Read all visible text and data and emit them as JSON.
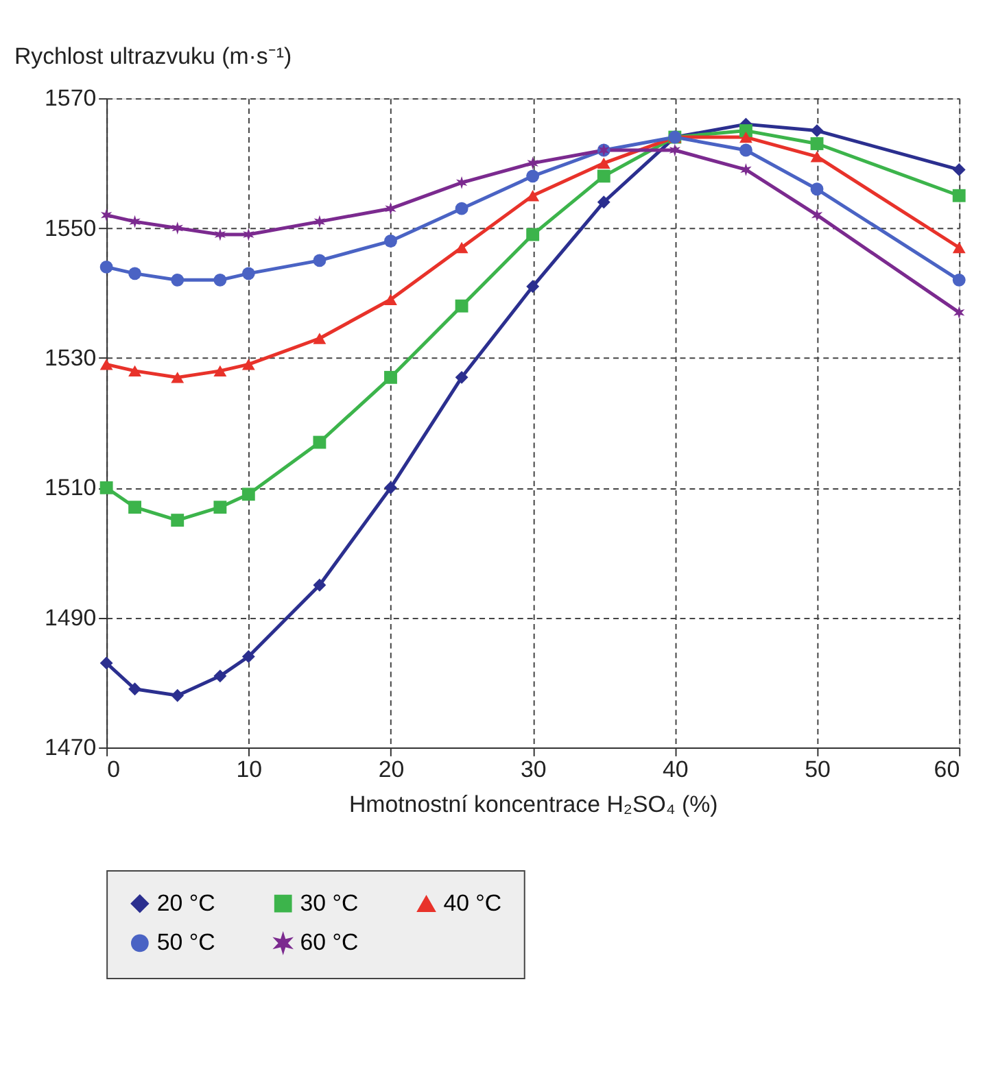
{
  "chart_data": {
    "type": "line",
    "ylabel": "Rychlost ultrazvuku (m·s⁻¹)",
    "xlabel": "Hmotnostní koncentrace H₂SO₄ (%)",
    "x": [
      0,
      2,
      5,
      8,
      10,
      15,
      20,
      25,
      30,
      35,
      40,
      45,
      50,
      60
    ],
    "series": [
      {
        "name": "20 °C",
        "color": "#2b2f8f",
        "marker": "diamond",
        "values": [
          1483,
          1479,
          1478,
          1481,
          1484,
          1495,
          1510,
          1527,
          1541,
          1554,
          1564,
          1566,
          1565,
          1559
        ]
      },
      {
        "name": "30 °C",
        "color": "#3cb44b",
        "marker": "square",
        "values": [
          1510,
          1507,
          1505,
          1507,
          1509,
          1517,
          1527,
          1538,
          1549,
          1558,
          1564,
          1565,
          1563,
          1555
        ]
      },
      {
        "name": "40 °C",
        "color": "#e8322a",
        "marker": "triangle",
        "values": [
          1529,
          1528,
          1527,
          1528,
          1529,
          1533,
          1539,
          1547,
          1555,
          1560,
          1564,
          1564,
          1561,
          1547
        ]
      },
      {
        "name": "50 °C",
        "color": "#4a63c4",
        "marker": "circle",
        "values": [
          1544,
          1543,
          1542,
          1542,
          1543,
          1545,
          1548,
          1553,
          1558,
          1562,
          1564,
          1562,
          1556,
          1542
        ]
      },
      {
        "name": "60 °C",
        "color": "#7b2a8f",
        "marker": "cross",
        "values": [
          1552,
          1551,
          1550,
          1549,
          1549,
          1551,
          1553,
          1557,
          1560,
          1562,
          1562,
          1559,
          1552,
          1537
        ]
      }
    ],
    "xlim": [
      0,
      60
    ],
    "xticks": [
      0,
      10,
      20,
      30,
      40,
      50,
      60
    ],
    "ylim": [
      1470,
      1570
    ],
    "yticks": [
      1470,
      1490,
      1510,
      1530,
      1550,
      1570
    ],
    "grid": true,
    "legend": "bottom",
    "line_style": "solid"
  }
}
